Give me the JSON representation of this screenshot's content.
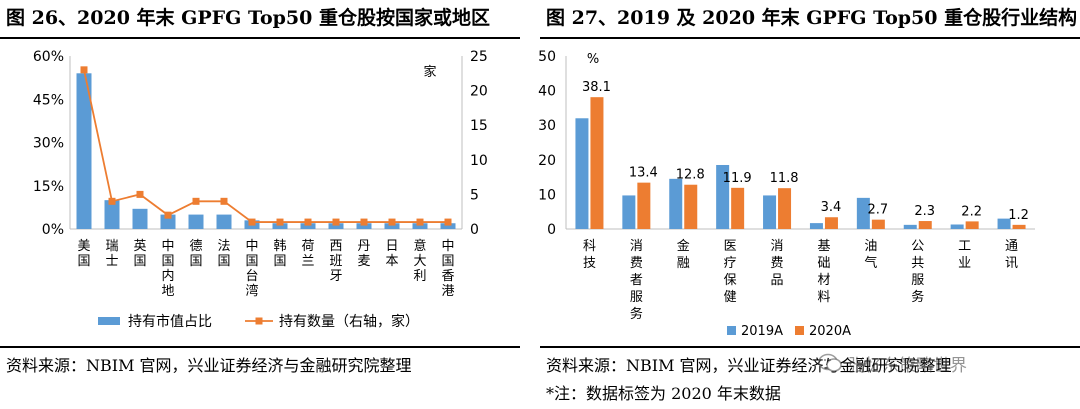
{
  "left": {
    "title": "图 26、2020 年末 GPFG Top50 重仓股按国家或地区",
    "source": "资料来源：NBIM 官网，兴业证券经济与金融研究院整理"
  },
  "right": {
    "title": "图 27、2019 及 2020 年末 GPFG Top50 重仓股行业结构",
    "source": "资料来源：NBIM 官网，兴业证券经济与金融研究院整理",
    "note": "*注：数据标签为 2020 年末数据"
  },
  "watermark": {
    "text": "张忆东策略世界"
  },
  "colors": {
    "blue": "#5b9bd5",
    "orange": "#ed7d31",
    "axis": "#bfbfbf"
  },
  "chart_data": [
    {
      "type": "bar+line",
      "title": "图 26、2020 年末 GPFG Top50 重仓股按国家或地区",
      "categories": [
        "美国",
        "瑞士",
        "英国",
        "中国内地",
        "德国",
        "法国",
        "中国台湾",
        "韩国",
        "荷兰",
        "西班牙",
        "丹麦",
        "日本",
        "意大利",
        "中国香港"
      ],
      "series": [
        {
          "name": "持有市值占比",
          "type": "bar",
          "axis": "left",
          "values": [
            54,
            10,
            7,
            5,
            5,
            5,
            3,
            2,
            2,
            2,
            2,
            2,
            2,
            2
          ]
        },
        {
          "name": "持有数量（右轴，家）",
          "type": "line",
          "axis": "right",
          "values": [
            23,
            4,
            5,
            2,
            4,
            4,
            1,
            1,
            1,
            1,
            1,
            1,
            1,
            1
          ]
        }
      ],
      "left_axis": {
        "ylim": [
          0,
          60
        ],
        "ticks": [
          "0%",
          "15%",
          "30%",
          "45%",
          "60%"
        ],
        "tick_values": [
          0,
          15,
          30,
          45,
          60
        ]
      },
      "right_axis": {
        "ylim": [
          0,
          25
        ],
        "ticks": [
          "0",
          "5",
          "10",
          "15",
          "20",
          "25"
        ],
        "tick_values": [
          0,
          5,
          10,
          15,
          20,
          25
        ],
        "unit_label": "家"
      },
      "legend": [
        "持有市值占比",
        "持有数量（右轴，家）"
      ]
    },
    {
      "type": "bar",
      "title": "图 27、2019 及 2020 年末 GPFG Top50 重仓股行业结构",
      "categories": [
        "科技",
        "消费者服务",
        "金融",
        "医疗保健",
        "消费品",
        "基础材料",
        "油气",
        "公共服务",
        "工业",
        "通讯"
      ],
      "series": [
        {
          "name": "2019A",
          "values": [
            32,
            9.7,
            14.5,
            18.5,
            9.7,
            1.7,
            9.0,
            1.2,
            1.3,
            3.0
          ]
        },
        {
          "name": "2020A",
          "values": [
            38.1,
            13.4,
            12.8,
            11.9,
            11.8,
            3.4,
            2.7,
            2.3,
            2.2,
            1.2
          ]
        }
      ],
      "data_labels": [
        "38.1",
        "13.4",
        "12.8",
        "11.9",
        "11.8",
        "3.4",
        "2.7",
        "2.3",
        "2.2",
        "1.2"
      ],
      "ylim": [
        0,
        50
      ],
      "yticks": [
        "0",
        "10",
        "20",
        "30",
        "40",
        "50"
      ],
      "ytick_values": [
        0,
        10,
        20,
        30,
        40,
        50
      ],
      "unit_label": "%",
      "legend": [
        "2019A",
        "2020A"
      ]
    }
  ]
}
